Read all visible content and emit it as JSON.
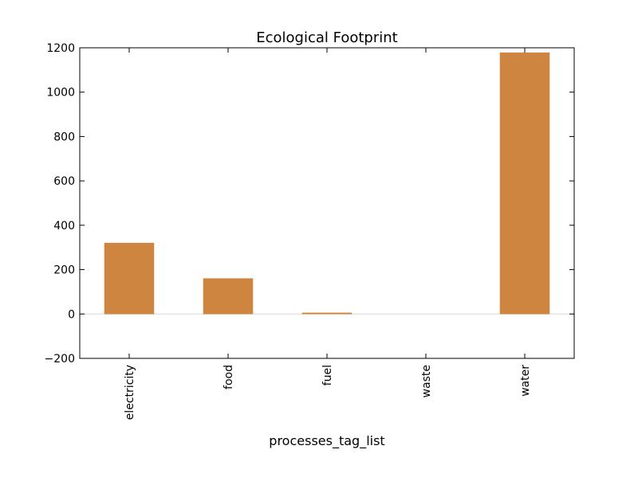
{
  "chart_data": {
    "type": "bar",
    "title": "Ecological Footprint",
    "xlabel": "processes_tag_list",
    "ylabel": "",
    "categories": [
      "electricity",
      "food",
      "fuel",
      "waste",
      "water"
    ],
    "values": [
      320,
      160,
      5,
      0,
      1178
    ],
    "ylim": [
      -200,
      1200
    ],
    "yticks": [
      "−200",
      "0",
      "200",
      "400",
      "600",
      "800",
      "1000",
      "1200"
    ],
    "bar_color": "#cd853f",
    "zero_line_color": "#d9d9d9",
    "grid": false,
    "legend": "none"
  }
}
